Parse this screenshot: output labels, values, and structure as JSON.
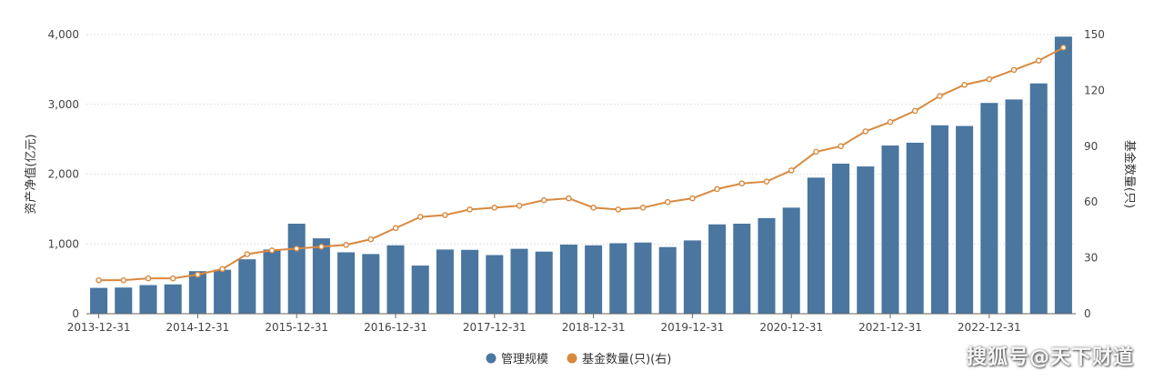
{
  "chart_data": {
    "type": "bar+line",
    "x": [
      "2013-12-31",
      "2014-03-31",
      "2014-06-30",
      "2014-09-30",
      "2014-12-31",
      "2015-03-31",
      "2015-06-30",
      "2015-09-30",
      "2015-12-31",
      "2016-03-31",
      "2016-06-30",
      "2016-09-30",
      "2016-12-31",
      "2017-03-31",
      "2017-06-30",
      "2017-09-30",
      "2017-12-31",
      "2018-03-31",
      "2018-06-30",
      "2018-09-30",
      "2018-12-31",
      "2019-03-31",
      "2019-06-30",
      "2019-09-30",
      "2019-12-31",
      "2020-03-31",
      "2020-06-30",
      "2020-09-30",
      "2020-12-31",
      "2021-03-31",
      "2021-06-30",
      "2021-09-30",
      "2021-12-31",
      "2022-03-31",
      "2022-06-30",
      "2022-09-30",
      "2022-12-31",
      "2023-03-31",
      "2023-06-30",
      "2023-09-30"
    ],
    "x_tick_labels": [
      "2013-12-31",
      "2014-12-31",
      "2015-12-31",
      "2016-12-31",
      "2017-12-31",
      "2018-12-31",
      "2019-12-31",
      "2020-12-31",
      "2021-12-31",
      "2022-12-31"
    ],
    "series": [
      {
        "name": "管理规模",
        "type": "bar",
        "axis": "left",
        "color": "#4a76a0",
        "values": [
          370,
          375,
          410,
          420,
          610,
          630,
          780,
          920,
          1290,
          1080,
          880,
          855,
          980,
          690,
          920,
          915,
          840,
          930,
          890,
          990,
          980,
          1010,
          1020,
          955,
          1050,
          1280,
          1290,
          1370,
          1520,
          1950,
          2150,
          2110,
          2410,
          2450,
          2700,
          2690,
          3020,
          3070,
          3300,
          3970
        ]
      },
      {
        "name": "基金数量(只)(右)",
        "type": "line",
        "axis": "right",
        "color": "#d9893e",
        "values": [
          18,
          18,
          19,
          19,
          21,
          24,
          32,
          34,
          35,
          36,
          37,
          40,
          46,
          52,
          53,
          56,
          57,
          58,
          61,
          62,
          57,
          56,
          57,
          60,
          62,
          67,
          70,
          71,
          77,
          87,
          90,
          98,
          103,
          109,
          117,
          123,
          126,
          131,
          136,
          143
        ]
      }
    ],
    "y_left": {
      "label": "资产净值(亿元)",
      "range": [
        0,
        4000
      ],
      "ticks": [
        "0",
        "1,000",
        "2,000",
        "3,000",
        "4,000"
      ],
      "tick_values": [
        0,
        1000,
        2000,
        3000,
        4000
      ]
    },
    "y_right": {
      "label": "基金数量(只)",
      "range": [
        0,
        150
      ],
      "ticks": [
        "0",
        "30",
        "60",
        "90",
        "120",
        "150"
      ],
      "tick_values": [
        0,
        30,
        60,
        90,
        120,
        150
      ]
    },
    "grid": true,
    "legend": {
      "position": "bottom-center",
      "items": [
        "管理规模",
        "基金数量(只)(右)"
      ]
    }
  },
  "watermark": "搜狐号@天下财道"
}
